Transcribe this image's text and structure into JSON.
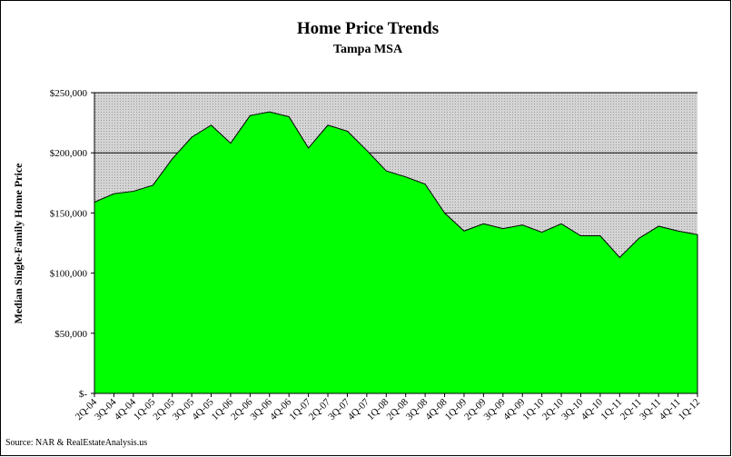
{
  "chart_data": {
    "type": "area",
    "title": "Home Price Trends",
    "subtitle": "Tampa MSA",
    "y_label": "Median Single-Family Home Price",
    "source": "Source: NAR & RealEstateAnalysis.us",
    "categories": [
      "2Q-04",
      "3Q-04",
      "4Q-04",
      "1Q-05",
      "2Q-05",
      "3Q-05",
      "4Q-05",
      "1Q-06",
      "2Q-06",
      "3Q-06",
      "4Q-06",
      "1Q-07",
      "2Q-07",
      "3Q-07",
      "4Q-07",
      "1Q-08",
      "2Q-08",
      "3Q-08",
      "4Q-08",
      "1Q-09",
      "2Q-09",
      "3Q-09",
      "4Q-09",
      "1Q-10",
      "2Q-10",
      "3Q-10",
      "4Q-10",
      "1Q-11",
      "2Q-11",
      "3Q-11",
      "4Q-11",
      "1Q-12"
    ],
    "values": [
      159000,
      166000,
      168000,
      173000,
      195000,
      213000,
      223000,
      208000,
      231000,
      234000,
      230000,
      204000,
      223000,
      218000,
      202000,
      185000,
      180000,
      174000,
      150000,
      135000,
      141000,
      137000,
      140000,
      134000,
      141000,
      131000,
      131000,
      113000,
      129000,
      139000,
      135000,
      132000
    ],
    "color": "#00ff00",
    "ylim": [
      0,
      250000
    ],
    "yticks": [
      {
        "value": 0,
        "label": "$-"
      },
      {
        "value": 50000,
        "label": "$50,000"
      },
      {
        "value": 100000,
        "label": "$100,000"
      },
      {
        "value": 150000,
        "label": "$150,000"
      },
      {
        "value": 200000,
        "label": "$200,000"
      },
      {
        "value": 250000,
        "label": "$250,000"
      }
    ],
    "grid": true
  }
}
